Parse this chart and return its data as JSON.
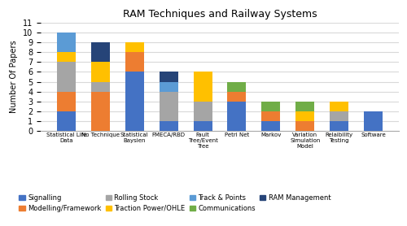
{
  "title": "RAM Techniques and Railway Systems",
  "ylabel": "Number Of Papers",
  "categories": [
    "Statistical Life\nData",
    "No Technique",
    "Statistical\nBaysien",
    "FMECA/RBD",
    "Fault\nTree/Event\nTree",
    "Petri Net",
    "Markov",
    "Variation\nSimulation\nModel",
    "Relaibility\nTesting",
    "Software"
  ],
  "series": {
    "Signalling": [
      2,
      0,
      6,
      1,
      1,
      3,
      1,
      0,
      1,
      2
    ],
    "Modelling/Framework": [
      2,
      4,
      2,
      0,
      0,
      1,
      1,
      1,
      0,
      0
    ],
    "Rolling Stock": [
      3,
      1,
      0,
      3,
      2,
      0,
      0,
      0,
      1,
      0
    ],
    "Traction Power/OHLE": [
      1,
      2,
      1,
      0,
      3,
      0,
      0,
      1,
      1,
      0
    ],
    "Track & Points": [
      2,
      0,
      0,
      1,
      0,
      0,
      0,
      0,
      0,
      0
    ],
    "Communications": [
      0,
      0,
      0,
      0,
      0,
      1,
      1,
      1,
      0,
      0
    ],
    "RAM Management": [
      0,
      2,
      0,
      1,
      0,
      0,
      0,
      0,
      0,
      0
    ]
  },
  "colors": {
    "Signalling": "#4472C4",
    "Modelling/Framework": "#ED7D31",
    "Rolling Stock": "#A5A5A5",
    "Traction Power/OHLE": "#FFC000",
    "Track & Points": "#5B9BD5",
    "Communications": "#70AD47",
    "RAM Management": "#264478"
  },
  "legend_order": [
    "Signalling",
    "Modelling/Framework",
    "Rolling Stock",
    "Traction Power/OHLE",
    "Track & Points",
    "Communications",
    "RAM Management"
  ],
  "ylim": [
    0,
    11
  ],
  "yticks": [
    0,
    1,
    2,
    3,
    4,
    5,
    6,
    7,
    8,
    9,
    10,
    11
  ],
  "background_color": "#FFFFFF",
  "grid_color": "#D9D9D9"
}
